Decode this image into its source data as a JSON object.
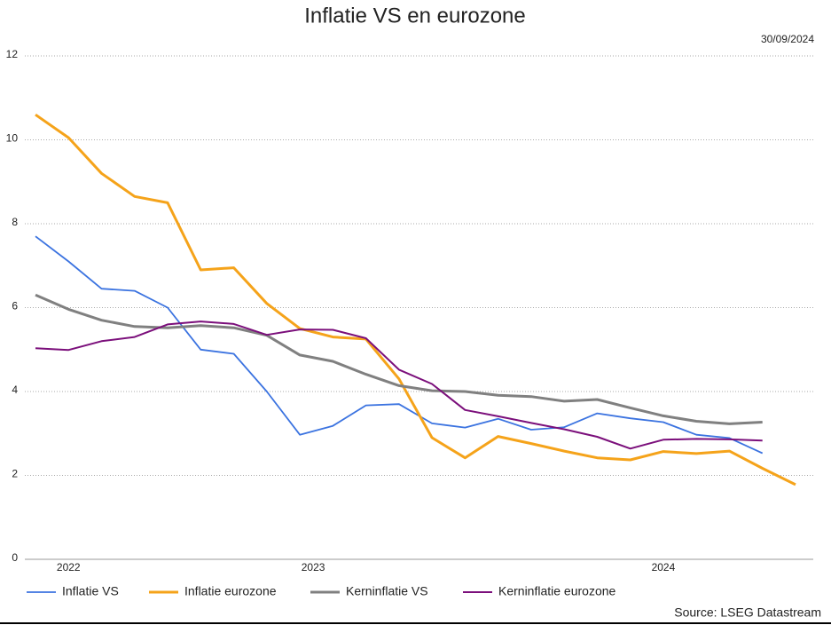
{
  "chart_data": {
    "type": "line",
    "title": "Inflatie VS en eurozone",
    "subtitle": "30/09/2024",
    "source": "Source: LSEG Datastream",
    "categories": [
      null,
      "2022",
      null,
      null,
      null,
      null,
      null,
      null,
      "2023",
      null,
      null,
      null,
      null,
      null,
      null,
      null,
      null,
      null,
      null,
      "2024",
      null,
      null,
      null,
      null
    ],
    "series": [
      {
        "name": "Inflatie VS",
        "color": "#3b73e0",
        "values": [
          7.7,
          7.1,
          6.45,
          6.4,
          6.0,
          5.0,
          4.9,
          4.0,
          2.97,
          3.18,
          3.67,
          3.7,
          3.24,
          3.14,
          3.35,
          3.09,
          3.15,
          3.48,
          3.36,
          3.27,
          2.97,
          2.89,
          2.53,
          null
        ]
      },
      {
        "name": "Inflatie eurozone",
        "color": "#f5a31a",
        "values": [
          10.6,
          10.05,
          9.2,
          8.65,
          8.5,
          6.9,
          6.95,
          6.1,
          5.5,
          5.3,
          5.25,
          4.3,
          2.9,
          2.42,
          2.93,
          2.76,
          2.58,
          2.42,
          2.37,
          2.57,
          2.52,
          2.58,
          2.17,
          1.78
        ]
      },
      {
        "name": "Kerninflatie VS",
        "color": "#808080",
        "values": [
          6.3,
          5.96,
          5.7,
          5.55,
          5.52,
          5.57,
          5.52,
          5.34,
          4.87,
          4.72,
          4.41,
          4.14,
          4.02,
          4.0,
          3.91,
          3.88,
          3.77,
          3.81,
          3.61,
          3.42,
          3.29,
          3.23,
          3.27,
          null
        ]
      },
      {
        "name": "Kerninflatie eurozone",
        "color": "#7b0f7b",
        "values": [
          5.03,
          4.99,
          5.2,
          5.3,
          5.6,
          5.67,
          5.61,
          5.35,
          5.48,
          5.47,
          5.27,
          4.52,
          4.18,
          3.56,
          3.41,
          3.25,
          3.1,
          2.92,
          2.64,
          2.85,
          2.87,
          2.86,
          2.83,
          null
        ]
      }
    ],
    "ylim": [
      0,
      12
    ],
    "yticks": [
      0,
      2,
      4,
      6,
      8,
      10,
      12
    ],
    "grid": true
  }
}
